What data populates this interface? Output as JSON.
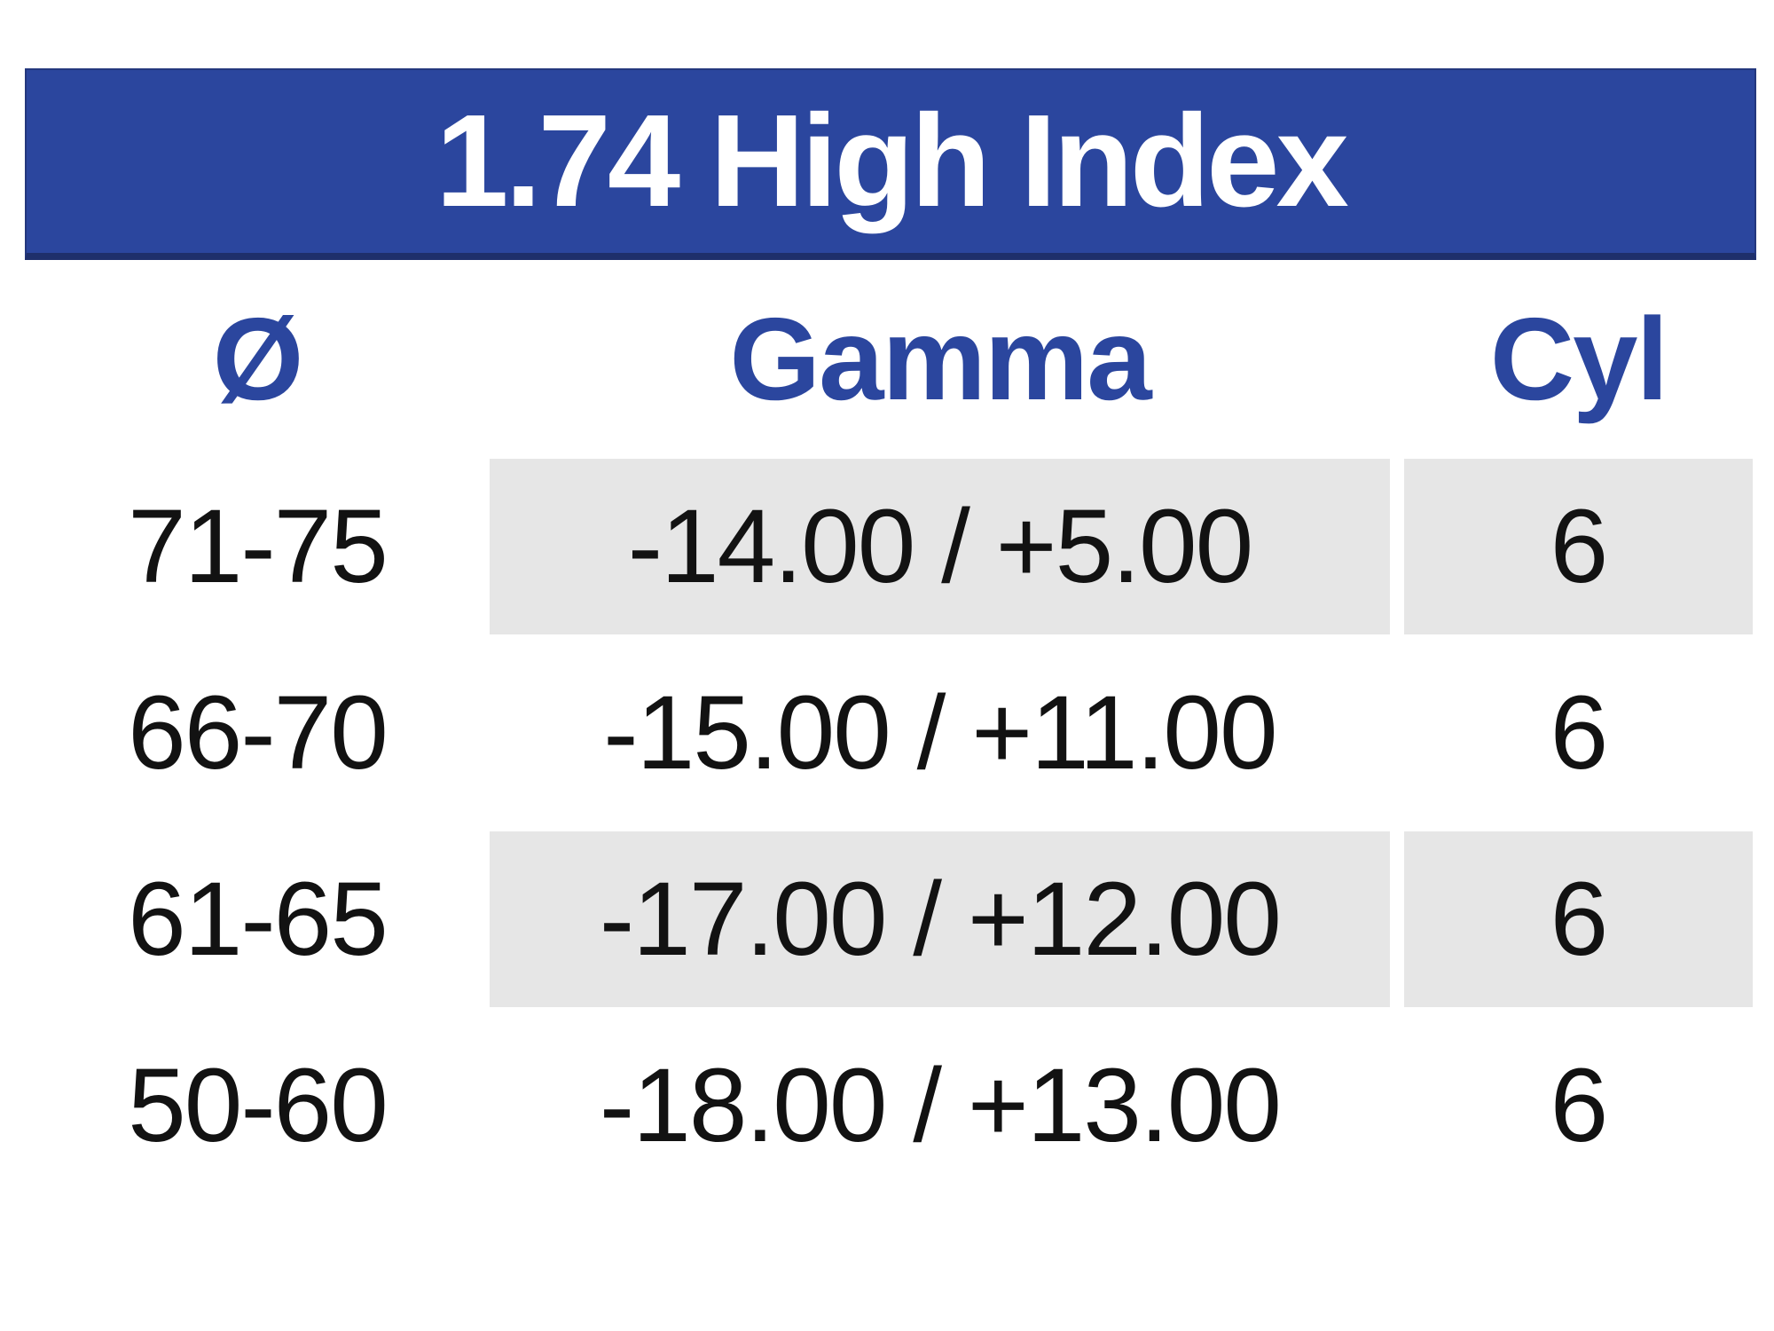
{
  "table": {
    "title": "1.74 High Index",
    "columns": [
      {
        "key": "diameter",
        "label": "Ø"
      },
      {
        "key": "gamma",
        "label": "Gamma"
      },
      {
        "key": "cyl",
        "label": "Cyl"
      }
    ],
    "rows": [
      {
        "diameter": "71-75",
        "gamma": "-14.00 / +5.00",
        "cyl": "6",
        "shaded": true
      },
      {
        "diameter": "66-70",
        "gamma": "-15.00 / +11.00",
        "cyl": "6",
        "shaded": false
      },
      {
        "diameter": "61-65",
        "gamma": "-17.00 / +12.00",
        "cyl": "6",
        "shaded": true
      },
      {
        "diameter": "50-60",
        "gamma": "-18.00 / +13.00",
        "cyl": "6",
        "shaded": false
      }
    ],
    "colors": {
      "banner_blue": "#2b469e",
      "banner_bottom_border": "#1e2f6b",
      "header_text_blue": "#2b469e",
      "shaded_cell_gray": "#e6e6e6",
      "body_text": "#121212",
      "background": "#ffffff"
    }
  }
}
